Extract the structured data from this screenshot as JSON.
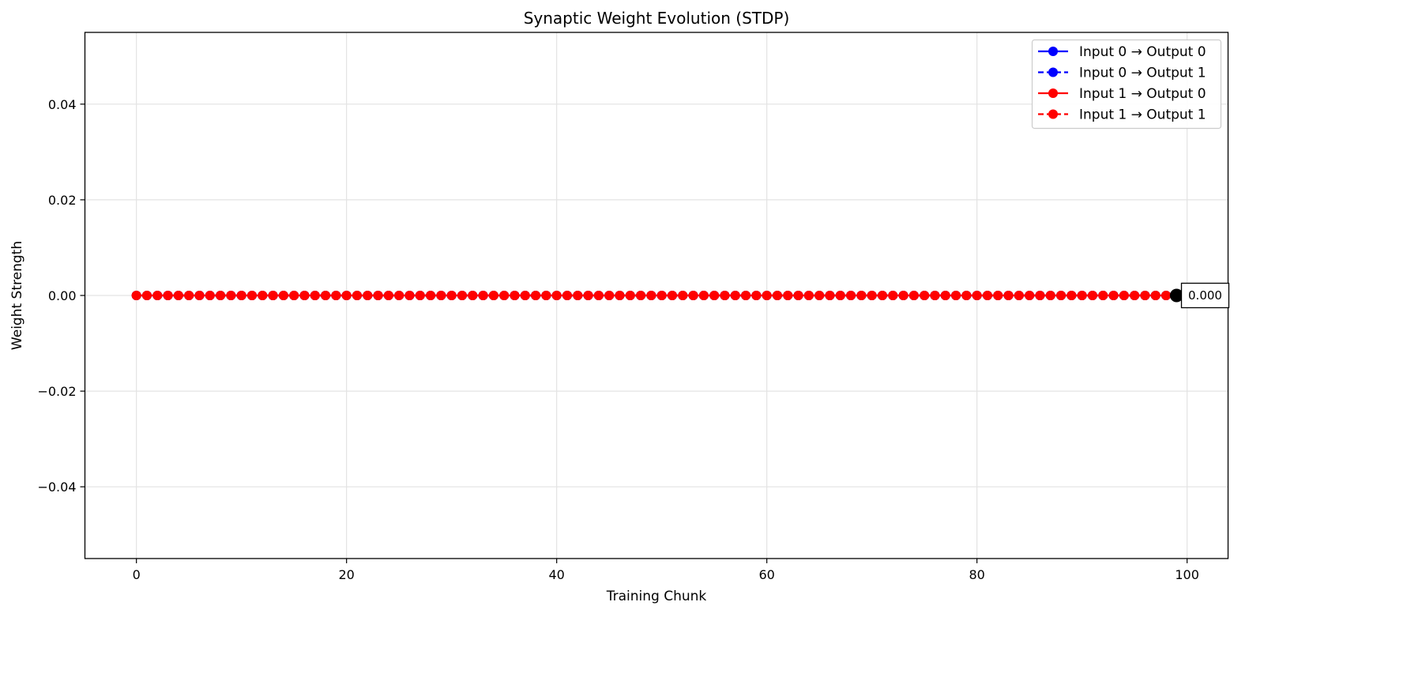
{
  "chart_data": {
    "type": "line",
    "title": "Synaptic Weight Evolution (STDP)",
    "xlabel": "Training Chunk",
    "ylabel": "Weight Strength",
    "xlim": [
      -4.9,
      103.9
    ],
    "ylim": [
      -0.055,
      0.055
    ],
    "x_ticks": [
      0,
      20,
      40,
      60,
      80,
      100
    ],
    "y_ticks": [
      -0.04,
      -0.02,
      0.0,
      0.02,
      0.04
    ],
    "x_tick_labels": [
      "0",
      "20",
      "40",
      "60",
      "80",
      "100"
    ],
    "y_tick_labels": [
      "−0.04",
      "−0.02",
      "0.00",
      "0.02",
      "0.04"
    ],
    "grid": true,
    "legend_position": "top-right",
    "x": [
      0,
      1,
      2,
      3,
      4,
      5,
      6,
      7,
      8,
      9,
      10,
      11,
      12,
      13,
      14,
      15,
      16,
      17,
      18,
      19,
      20,
      21,
      22,
      23,
      24,
      25,
      26,
      27,
      28,
      29,
      30,
      31,
      32,
      33,
      34,
      35,
      36,
      37,
      38,
      39,
      40,
      41,
      42,
      43,
      44,
      45,
      46,
      47,
      48,
      49,
      50,
      51,
      52,
      53,
      54,
      55,
      56,
      57,
      58,
      59,
      60,
      61,
      62,
      63,
      64,
      65,
      66,
      67,
      68,
      69,
      70,
      71,
      72,
      73,
      74,
      75,
      76,
      77,
      78,
      79,
      80,
      81,
      82,
      83,
      84,
      85,
      86,
      87,
      88,
      89,
      90,
      91,
      92,
      93,
      94,
      95,
      96,
      97,
      98,
      99
    ],
    "series": [
      {
        "name": "Input 0 → Output 0",
        "color": "#0000ff",
        "linestyle": "solid",
        "marker": "circle",
        "values": [
          0,
          0,
          0,
          0,
          0,
          0,
          0,
          0,
          0,
          0,
          0,
          0,
          0,
          0,
          0,
          0,
          0,
          0,
          0,
          0,
          0,
          0,
          0,
          0,
          0,
          0,
          0,
          0,
          0,
          0,
          0,
          0,
          0,
          0,
          0,
          0,
          0,
          0,
          0,
          0,
          0,
          0,
          0,
          0,
          0,
          0,
          0,
          0,
          0,
          0,
          0,
          0,
          0,
          0,
          0,
          0,
          0,
          0,
          0,
          0,
          0,
          0,
          0,
          0,
          0,
          0,
          0,
          0,
          0,
          0,
          0,
          0,
          0,
          0,
          0,
          0,
          0,
          0,
          0,
          0,
          0,
          0,
          0,
          0,
          0,
          0,
          0,
          0,
          0,
          0,
          0,
          0,
          0,
          0,
          0,
          0,
          0,
          0,
          0,
          0
        ]
      },
      {
        "name": "Input 0 → Output 1",
        "color": "#0000ff",
        "linestyle": "dashed",
        "marker": "circle",
        "values": [
          0,
          0,
          0,
          0,
          0,
          0,
          0,
          0,
          0,
          0,
          0,
          0,
          0,
          0,
          0,
          0,
          0,
          0,
          0,
          0,
          0,
          0,
          0,
          0,
          0,
          0,
          0,
          0,
          0,
          0,
          0,
          0,
          0,
          0,
          0,
          0,
          0,
          0,
          0,
          0,
          0,
          0,
          0,
          0,
          0,
          0,
          0,
          0,
          0,
          0,
          0,
          0,
          0,
          0,
          0,
          0,
          0,
          0,
          0,
          0,
          0,
          0,
          0,
          0,
          0,
          0,
          0,
          0,
          0,
          0,
          0,
          0,
          0,
          0,
          0,
          0,
          0,
          0,
          0,
          0,
          0,
          0,
          0,
          0,
          0,
          0,
          0,
          0,
          0,
          0,
          0,
          0,
          0,
          0,
          0,
          0,
          0,
          0,
          0,
          0
        ]
      },
      {
        "name": "Input 1 → Output 0",
        "color": "#ff0000",
        "linestyle": "solid",
        "marker": "circle",
        "values": [
          0,
          0,
          0,
          0,
          0,
          0,
          0,
          0,
          0,
          0,
          0,
          0,
          0,
          0,
          0,
          0,
          0,
          0,
          0,
          0,
          0,
          0,
          0,
          0,
          0,
          0,
          0,
          0,
          0,
          0,
          0,
          0,
          0,
          0,
          0,
          0,
          0,
          0,
          0,
          0,
          0,
          0,
          0,
          0,
          0,
          0,
          0,
          0,
          0,
          0,
          0,
          0,
          0,
          0,
          0,
          0,
          0,
          0,
          0,
          0,
          0,
          0,
          0,
          0,
          0,
          0,
          0,
          0,
          0,
          0,
          0,
          0,
          0,
          0,
          0,
          0,
          0,
          0,
          0,
          0,
          0,
          0,
          0,
          0,
          0,
          0,
          0,
          0,
          0,
          0,
          0,
          0,
          0,
          0,
          0,
          0,
          0,
          0,
          0,
          0
        ]
      },
      {
        "name": "Input 1 → Output 1",
        "color": "#ff0000",
        "linestyle": "dashed",
        "marker": "circle",
        "values": [
          0,
          0,
          0,
          0,
          0,
          0,
          0,
          0,
          0,
          0,
          0,
          0,
          0,
          0,
          0,
          0,
          0,
          0,
          0,
          0,
          0,
          0,
          0,
          0,
          0,
          0,
          0,
          0,
          0,
          0,
          0,
          0,
          0,
          0,
          0,
          0,
          0,
          0,
          0,
          0,
          0,
          0,
          0,
          0,
          0,
          0,
          0,
          0,
          0,
          0,
          0,
          0,
          0,
          0,
          0,
          0,
          0,
          0,
          0,
          0,
          0,
          0,
          0,
          0,
          0,
          0,
          0,
          0,
          0,
          0,
          0,
          0,
          0,
          0,
          0,
          0,
          0,
          0,
          0,
          0,
          0,
          0,
          0,
          0,
          0,
          0,
          0,
          0,
          0,
          0,
          0,
          0,
          0,
          0,
          0,
          0,
          0,
          0,
          0,
          0
        ]
      }
    ],
    "highlight_point": {
      "x": 99,
      "y": 0.0,
      "color": "#000000"
    },
    "annotation": {
      "text": "0.000",
      "x": 99,
      "y": 0.0
    }
  }
}
